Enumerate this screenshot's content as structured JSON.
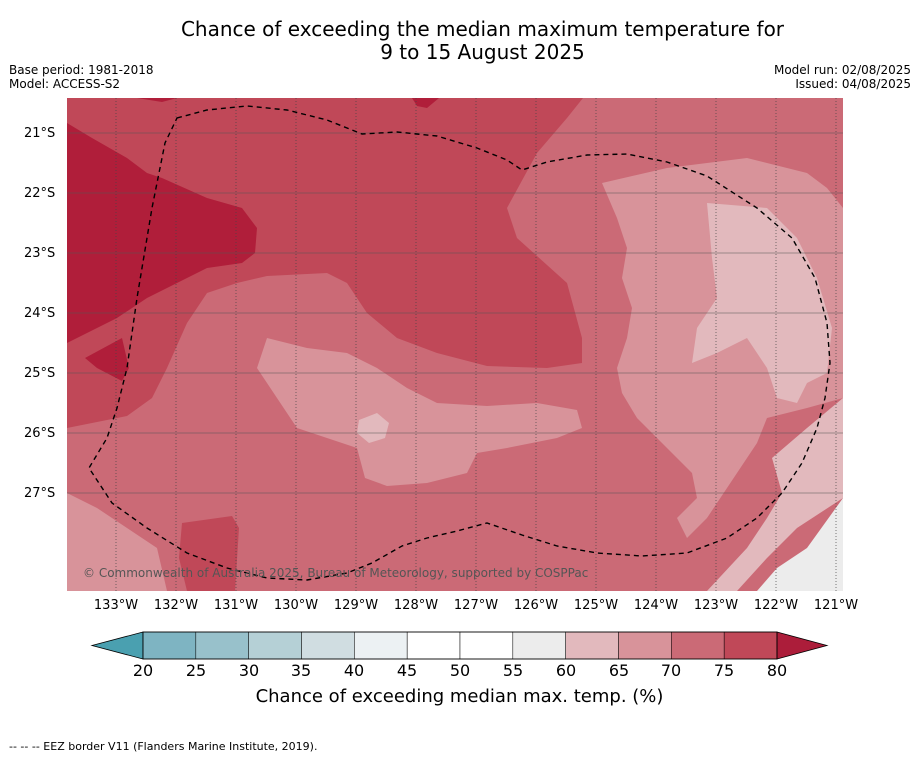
{
  "title": {
    "line1": "Chance of exceeding the median maximum temperature for",
    "line2": "9 to 15 August 2025"
  },
  "meta_left": {
    "base_period": "Base period: 1981-2018",
    "model": "Model: ACCESS-S2"
  },
  "meta_right": {
    "model_run": "Model run: 02/08/2025",
    "issued": "Issued: 04/08/2025"
  },
  "map": {
    "lat_ticks": [
      "21°S",
      "22°S",
      "23°S",
      "24°S",
      "25°S",
      "26°S",
      "27°S"
    ],
    "lon_ticks": [
      "133°W",
      "132°W",
      "131°W",
      "130°W",
      "129°W",
      "128°W",
      "127°W",
      "126°W",
      "125°W",
      "124°W",
      "123°W",
      "122°W",
      "121°W"
    ],
    "copyright": "© Commonwealth of Australia 2025, Bureau of Meteorology, supported by COSPPac",
    "colors": {
      "bin_80_plus": "#b01e3a",
      "bin_75_80": "#c04858",
      "bin_70_75": "#cb6a76",
      "bin_65_70": "#d8939a",
      "bin_60_65": "#e2b9bd",
      "bin_55_60": "#ececec"
    }
  },
  "colorbar": {
    "labels": [
      "20",
      "25",
      "30",
      "35",
      "40",
      "45",
      "50",
      "55",
      "60",
      "65",
      "70",
      "75",
      "80"
    ],
    "colors": [
      "#62a8b8",
      "#7eb4c2",
      "#98c1cb",
      "#b5d0d6",
      "#d0dde1",
      "#ecf1f3",
      "#ffffff",
      "#ffffff",
      "#ececec",
      "#e2b9bd",
      "#d8939a",
      "#cb6a76",
      "#c04858"
    ],
    "under_color": "#4aa0b0",
    "over_color": "#ac1d3a",
    "title": "Chance of exceeding median max. temp. (%)"
  },
  "footnote": "--  --  -- EEZ border V11 (Flanders Marine Institute, 2019)."
}
